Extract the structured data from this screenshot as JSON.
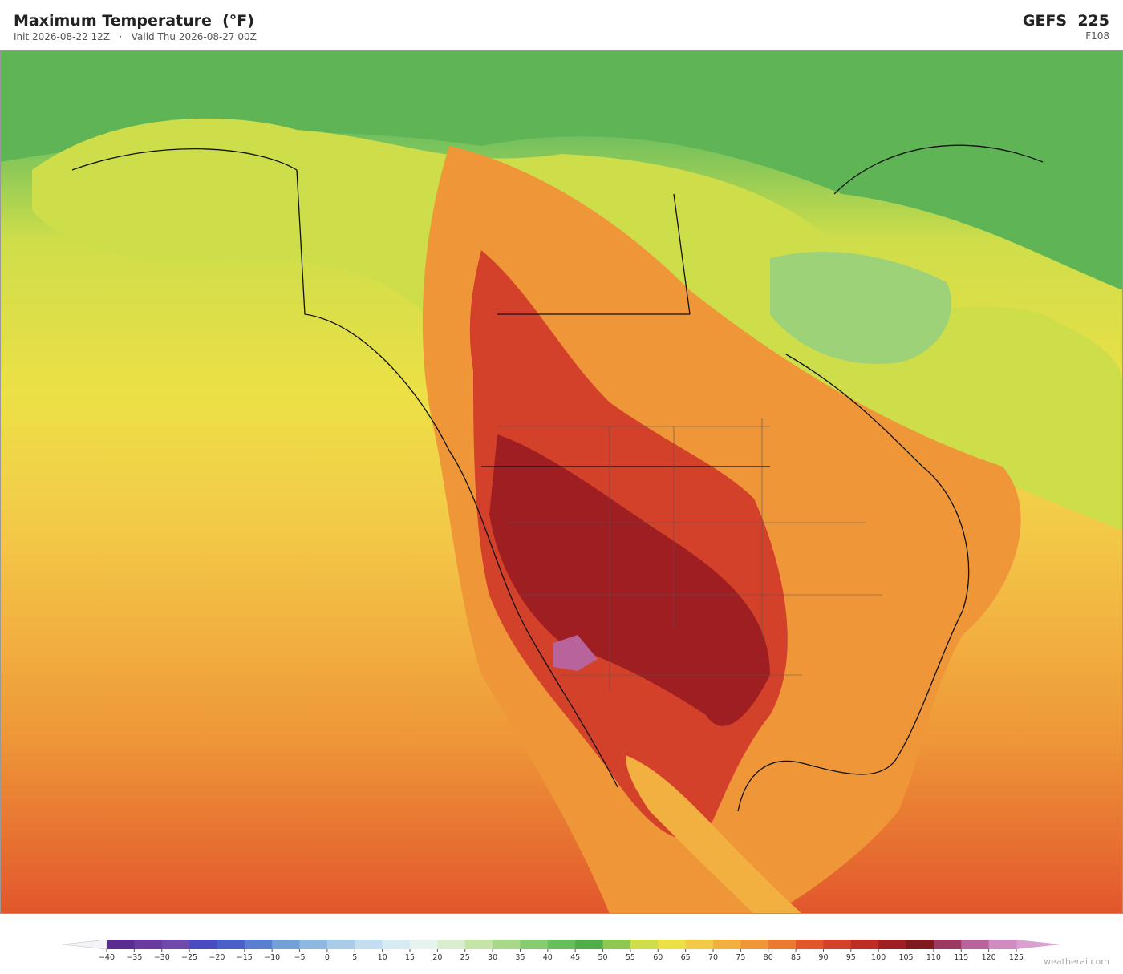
{
  "header": {
    "title": "Maximum Temperature  (°F)",
    "subtitle": "Init 2026-08-22 12Z   ·   Valid Thu 2026-08-27 00Z",
    "model": "GEFS  225",
    "forecast_hour": "F108"
  },
  "colorbar": {
    "ticks": [
      {
        "value": -40,
        "label": "−40"
      },
      {
        "value": -35,
        "label": "−35"
      },
      {
        "value": -30,
        "label": "−30"
      },
      {
        "value": -25,
        "label": "−25"
      },
      {
        "value": -20,
        "label": "−20"
      },
      {
        "value": -15,
        "label": "−15"
      },
      {
        "value": -10,
        "label": "−10"
      },
      {
        "value": -5,
        "label": "−5"
      },
      0,
      5,
      10,
      15,
      20,
      25,
      30,
      35,
      40,
      45,
      50,
      55,
      60,
      65,
      70,
      75,
      80,
      85,
      90,
      95,
      100,
      105,
      110,
      115,
      120,
      125
    ],
    "colors": [
      "#5b2c8f",
      "#6a3a9e",
      "#6f4aab",
      "#4b4bbf",
      "#4a5fc8",
      "#5b7fd0",
      "#74a0d8",
      "#8fb8e0",
      "#a9cde8",
      "#c3def0",
      "#d7ecf2",
      "#e6f3ee",
      "#d8eecf",
      "#c4e4a8",
      "#a8d98a",
      "#88cc70",
      "#67bf5c",
      "#4fad4a",
      "#8ec850",
      "#cede4a",
      "#ece046",
      "#f3ca48",
      "#f2b040",
      "#ee9638",
      "#ea7a32",
      "#e2562c",
      "#d4412a",
      "#be2c26",
      "#9e1e22",
      "#7e1a1e",
      "#9a3a60",
      "#b8639a",
      "#d08cc0"
    ],
    "under_color": "#f4f4f8",
    "over_color": "#d9a0d0"
  },
  "footer": {
    "watermark": "weatherai.com"
  }
}
